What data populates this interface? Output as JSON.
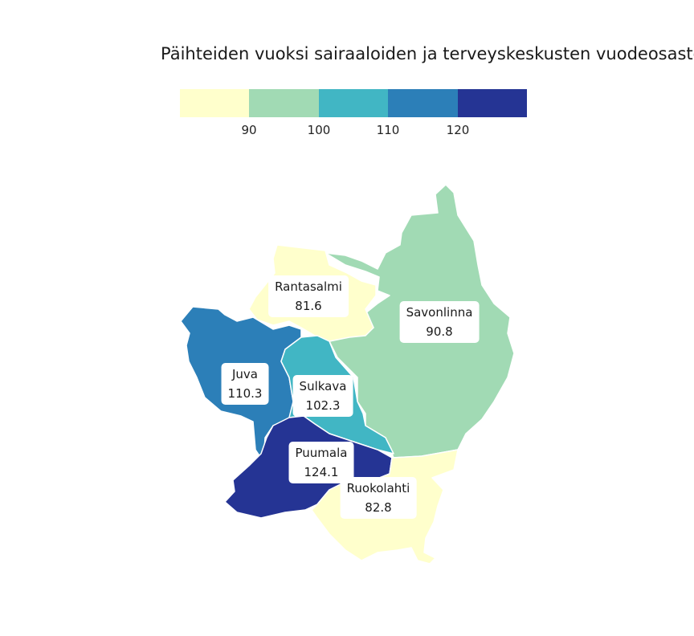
{
  "title": "Päihteiden vuoksi sairaaloiden ja terveyskeskusten vuodeosastoilla hoidetut potilaat",
  "legend": {
    "colors": [
      "#ffffcc",
      "#a1dab4",
      "#41b6c4",
      "#2c7fb8",
      "#253494"
    ],
    "breaks": [
      "90",
      "100",
      "110",
      "120"
    ]
  },
  "regions": [
    {
      "name": "Rantasalmi",
      "value": "81.6",
      "color": "#ffffcc"
    },
    {
      "name": "Savonlinna",
      "value": "90.8",
      "color": "#a1dab4"
    },
    {
      "name": "Juva",
      "value": "110.3",
      "color": "#2c7fb8"
    },
    {
      "name": "Sulkava",
      "value": "102.3",
      "color": "#41b6c4"
    },
    {
      "name": "Puumala",
      "value": "124.1",
      "color": "#253494"
    },
    {
      "name": "Ruokolahti",
      "value": "82.8",
      "color": "#ffffcc"
    }
  ]
}
